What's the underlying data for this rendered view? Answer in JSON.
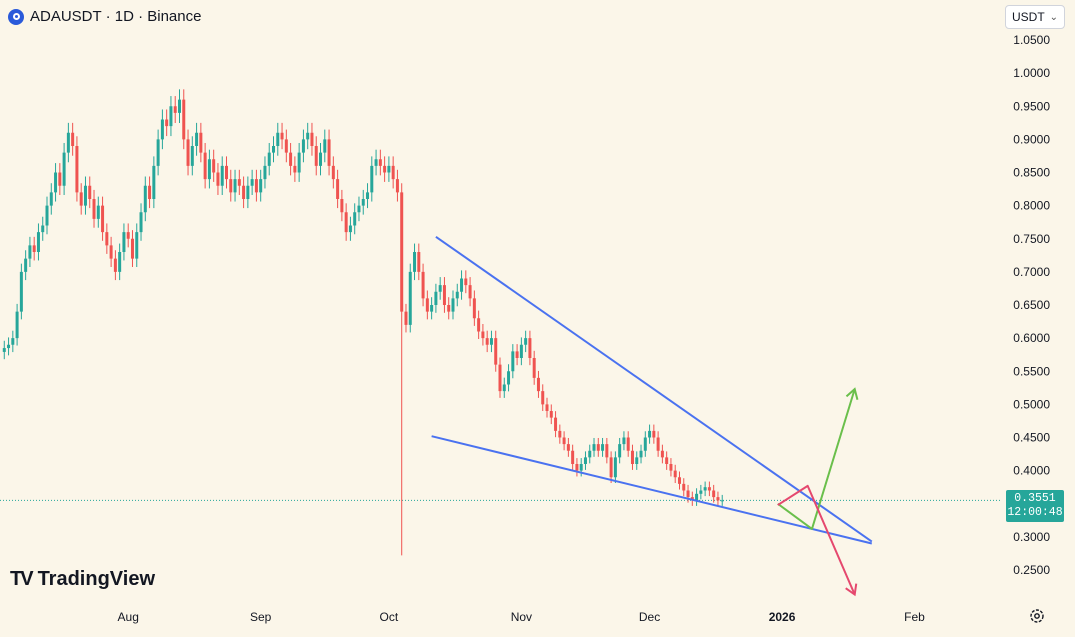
{
  "header": {
    "title": "ADAUSDT · 1D · Binance"
  },
  "currency": {
    "selected": "USDT"
  },
  "price_badge": {
    "price": "0.3551",
    "countdown": "12:00:48"
  },
  "branding": {
    "logo_text": "TradingView"
  },
  "colors": {
    "background": "#fbf6e9",
    "up": "#26a69a",
    "down": "#ef5350",
    "trendline": "#4a72f0",
    "bull_arrow": "#6abf4b",
    "bear_arrow": "#e5486e"
  },
  "chart_data": {
    "type": "candlestick",
    "symbol": "ADAUSDT",
    "interval": "1D",
    "exchange": "Binance",
    "ylim": [
      0.225,
      1.08
    ],
    "y_ticks": [
      "1.0500",
      "1.0000",
      "0.9500",
      "0.9000",
      "0.8500",
      "0.8000",
      "0.7500",
      "0.7000",
      "0.6500",
      "0.6000",
      "0.5500",
      "0.5000",
      "0.4500",
      "0.4000",
      "0.3500",
      "0.3000",
      "0.2500"
    ],
    "x_ticks": [
      {
        "label": "Aug",
        "date": "2025-08-01"
      },
      {
        "label": "Sep",
        "date": "2025-09-01"
      },
      {
        "label": "Oct",
        "date": "2025-10-01"
      },
      {
        "label": "Nov",
        "date": "2025-11-01"
      },
      {
        "label": "Dec",
        "date": "2025-12-01"
      },
      {
        "label": "2026",
        "date": "2026-01-01",
        "bold": true
      },
      {
        "label": "Feb",
        "date": "2026-02-01"
      }
    ],
    "x_range": [
      "2025-07-02",
      "2026-02-21"
    ],
    "first_candle_date": "2025-07-03",
    "current_price": 0.3551,
    "closes": [
      0.585,
      0.59,
      0.6,
      0.64,
      0.7,
      0.72,
      0.74,
      0.73,
      0.76,
      0.77,
      0.8,
      0.82,
      0.85,
      0.83,
      0.88,
      0.91,
      0.89,
      0.82,
      0.8,
      0.83,
      0.81,
      0.78,
      0.8,
      0.76,
      0.74,
      0.72,
      0.7,
      0.73,
      0.76,
      0.75,
      0.72,
      0.76,
      0.79,
      0.83,
      0.81,
      0.86,
      0.9,
      0.93,
      0.92,
      0.95,
      0.94,
      0.96,
      0.9,
      0.86,
      0.89,
      0.91,
      0.88,
      0.84,
      0.87,
      0.85,
      0.83,
      0.86,
      0.84,
      0.82,
      0.84,
      0.83,
      0.81,
      0.83,
      0.84,
      0.82,
      0.84,
      0.86,
      0.88,
      0.89,
      0.91,
      0.9,
      0.88,
      0.86,
      0.85,
      0.88,
      0.9,
      0.91,
      0.89,
      0.86,
      0.88,
      0.9,
      0.86,
      0.84,
      0.81,
      0.79,
      0.76,
      0.77,
      0.79,
      0.8,
      0.81,
      0.82,
      0.86,
      0.87,
      0.86,
      0.85,
      0.86,
      0.84,
      0.82,
      0.64,
      0.62,
      0.7,
      0.73,
      0.7,
      0.66,
      0.64,
      0.65,
      0.67,
      0.68,
      0.65,
      0.64,
      0.66,
      0.67,
      0.69,
      0.68,
      0.66,
      0.63,
      0.61,
      0.6,
      0.59,
      0.6,
      0.56,
      0.52,
      0.53,
      0.55,
      0.58,
      0.57,
      0.59,
      0.6,
      0.57,
      0.54,
      0.52,
      0.5,
      0.49,
      0.48,
      0.46,
      0.45,
      0.44,
      0.43,
      0.41,
      0.4,
      0.41,
      0.42,
      0.43,
      0.44,
      0.43,
      0.44,
      0.42,
      0.39,
      0.42,
      0.44,
      0.45,
      0.43,
      0.41,
      0.42,
      0.43,
      0.45,
      0.46,
      0.45,
      0.43,
      0.42,
      0.41,
      0.4,
      0.39,
      0.38,
      0.37,
      0.36,
      0.355,
      0.365,
      0.37,
      0.375,
      0.37,
      0.36,
      0.355,
      0.3551
    ]
  },
  "annotations": [
    {
      "id": "upper-trendline",
      "type": "line",
      "from": {
        "date": "2025-10-12",
        "price": 0.753
      },
      "to": {
        "date": "2026-01-22",
        "price": 0.293
      }
    },
    {
      "id": "lower-trendline",
      "type": "line",
      "from": {
        "date": "2025-10-11",
        "price": 0.452
      },
      "to": {
        "date": "2026-01-22",
        "price": 0.29
      }
    },
    {
      "id": "bullish-projection",
      "type": "arrow-path",
      "points": [
        {
          "date": "2025-12-31",
          "price": 0.35
        },
        {
          "date": "2026-01-08",
          "price": 0.312
        },
        {
          "date": "2026-01-18",
          "price": 0.523
        }
      ]
    },
    {
      "id": "bearish-projection",
      "type": "arrow-path",
      "points": [
        {
          "date": "2025-12-31",
          "price": 0.348
        },
        {
          "date": "2026-01-07",
          "price": 0.377
        },
        {
          "date": "2026-01-18",
          "price": 0.213
        }
      ]
    }
  ]
}
